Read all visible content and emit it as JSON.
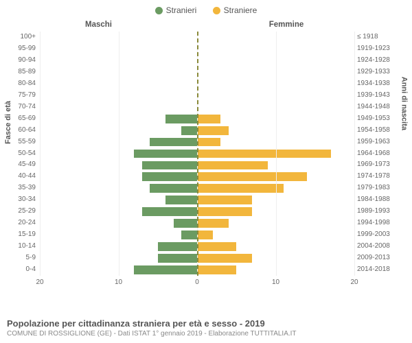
{
  "legend": {
    "items": [
      {
        "label": "Stranieri",
        "color": "#6b9b62"
      },
      {
        "label": "Straniere",
        "color": "#f2b63c"
      }
    ]
  },
  "headers": {
    "male": "Maschi",
    "female": "Femmine"
  },
  "axis_labels": {
    "left": "Fasce di età",
    "right": "Anni di nascita"
  },
  "chart": {
    "type": "population-pyramid",
    "x_range": [
      -20,
      20
    ],
    "x_ticks": [
      -20,
      -10,
      0,
      10,
      20
    ],
    "x_tick_labels": [
      "20",
      "10",
      "0",
      "10",
      "20"
    ],
    "colors": {
      "male": "#6b9b62",
      "female": "#f2b63c",
      "grid": "#eeeeee",
      "center_dash": "#8a8a3a",
      "background": "#ffffff"
    },
    "bar_fontsize": 10,
    "rows": [
      {
        "age": "100+",
        "birth": "≤ 1918",
        "m": 0,
        "f": 0
      },
      {
        "age": "95-99",
        "birth": "1919-1923",
        "m": 0,
        "f": 0
      },
      {
        "age": "90-94",
        "birth": "1924-1928",
        "m": 0,
        "f": 0
      },
      {
        "age": "85-89",
        "birth": "1929-1933",
        "m": 0,
        "f": 0
      },
      {
        "age": "80-84",
        "birth": "1934-1938",
        "m": 0,
        "f": 0
      },
      {
        "age": "75-79",
        "birth": "1939-1943",
        "m": 0,
        "f": 0
      },
      {
        "age": "70-74",
        "birth": "1944-1948",
        "m": 0,
        "f": 0
      },
      {
        "age": "65-69",
        "birth": "1949-1953",
        "m": 4,
        "f": 3
      },
      {
        "age": "60-64",
        "birth": "1954-1958",
        "m": 2,
        "f": 4
      },
      {
        "age": "55-59",
        "birth": "1959-1963",
        "m": 6,
        "f": 3
      },
      {
        "age": "50-54",
        "birth": "1964-1968",
        "m": 8,
        "f": 17
      },
      {
        "age": "45-49",
        "birth": "1969-1973",
        "m": 7,
        "f": 9
      },
      {
        "age": "40-44",
        "birth": "1974-1978",
        "m": 7,
        "f": 14
      },
      {
        "age": "35-39",
        "birth": "1979-1983",
        "m": 6,
        "f": 11
      },
      {
        "age": "30-34",
        "birth": "1984-1988",
        "m": 4,
        "f": 7
      },
      {
        "age": "25-29",
        "birth": "1989-1993",
        "m": 7,
        "f": 7
      },
      {
        "age": "20-24",
        "birth": "1994-1998",
        "m": 3,
        "f": 4
      },
      {
        "age": "15-19",
        "birth": "1999-2003",
        "m": 2,
        "f": 2
      },
      {
        "age": "10-14",
        "birth": "2004-2008",
        "m": 5,
        "f": 5
      },
      {
        "age": "5-9",
        "birth": "2009-2013",
        "m": 5,
        "f": 7
      },
      {
        "age": "0-4",
        "birth": "2014-2018",
        "m": 8,
        "f": 5
      }
    ]
  },
  "footer": {
    "title": "Popolazione per cittadinanza straniera per età e sesso - 2019",
    "subtitle": "COMUNE DI ROSSIGLIONE (GE) - Dati ISTAT 1° gennaio 2019 - Elaborazione TUTTITALIA.IT"
  }
}
